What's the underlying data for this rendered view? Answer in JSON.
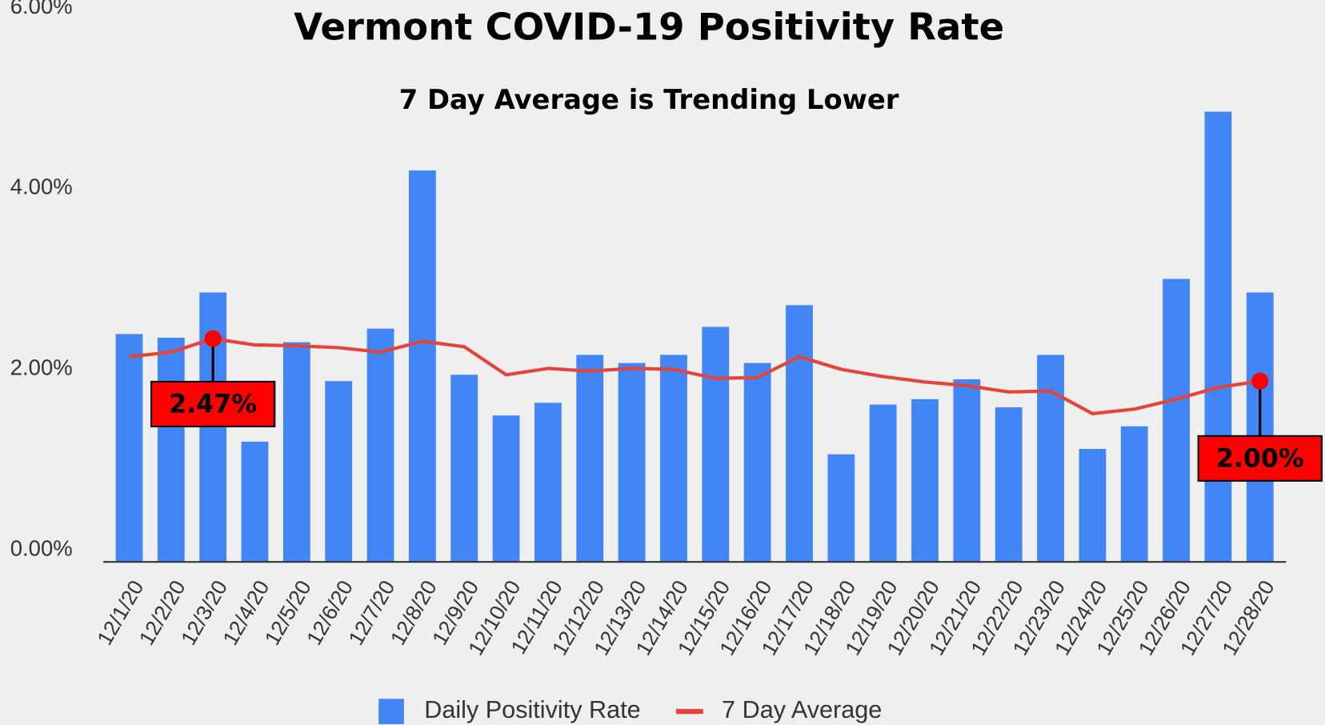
{
  "chart_data": {
    "type": "bar",
    "title": "Vermont COVID-19 Positivity Rate",
    "subtitle": "7 Day Average is Trending Lower",
    "categories": [
      "12/1/20",
      "12/2/20",
      "12/3/20",
      "12/4/20",
      "12/5/20",
      "12/6/20",
      "12/7/20",
      "12/8/20",
      "12/9/20",
      "12/10/20",
      "12/11/20",
      "12/12/20",
      "12/13/20",
      "12/14/20",
      "12/15/20",
      "12/16/20",
      "12/17/20",
      "12/18/20",
      "12/19/20",
      "12/20/20",
      "12/21/20",
      "12/22/20",
      "12/23/20",
      "12/24/20",
      "12/25/20",
      "12/26/20",
      "12/27/20",
      "12/28/20"
    ],
    "series": [
      {
        "name": "Daily Positivity Rate",
        "type": "bar",
        "color": "#4285f4",
        "values": [
          2.52,
          2.48,
          2.98,
          1.33,
          2.43,
          2.0,
          2.58,
          4.33,
          2.07,
          1.62,
          1.76,
          2.29,
          2.2,
          2.29,
          2.6,
          2.2,
          2.84,
          1.19,
          1.74,
          1.8,
          2.02,
          1.71,
          2.29,
          1.25,
          1.5,
          3.13,
          4.98,
          2.98
        ]
      },
      {
        "name": "7 Day Average",
        "type": "line",
        "color": "#e2453c",
        "values": [
          2.27,
          2.32,
          2.47,
          2.4,
          2.39,
          2.37,
          2.32,
          2.44,
          2.38,
          2.07,
          2.14,
          2.11,
          2.14,
          2.13,
          2.03,
          2.04,
          2.27,
          2.13,
          2.05,
          1.99,
          1.95,
          1.88,
          1.89,
          1.64,
          1.69,
          1.8,
          1.93,
          2.0
        ],
        "value_labels": [
          null,
          null,
          "2.47%",
          null,
          null,
          null,
          null,
          null,
          null,
          null,
          null,
          null,
          null,
          null,
          null,
          null,
          null,
          null,
          null,
          null,
          null,
          null,
          null,
          null,
          null,
          null,
          null,
          "2.00%"
        ]
      }
    ],
    "ylim": [
      0,
      6
    ],
    "yticks": [
      {
        "value": 0,
        "label": "0.00%"
      },
      {
        "value": 2,
        "label": "2.00%"
      },
      {
        "value": 4,
        "label": "4.00%"
      },
      {
        "value": 6,
        "label": "6.00%"
      }
    ],
    "legend": "bottom"
  }
}
